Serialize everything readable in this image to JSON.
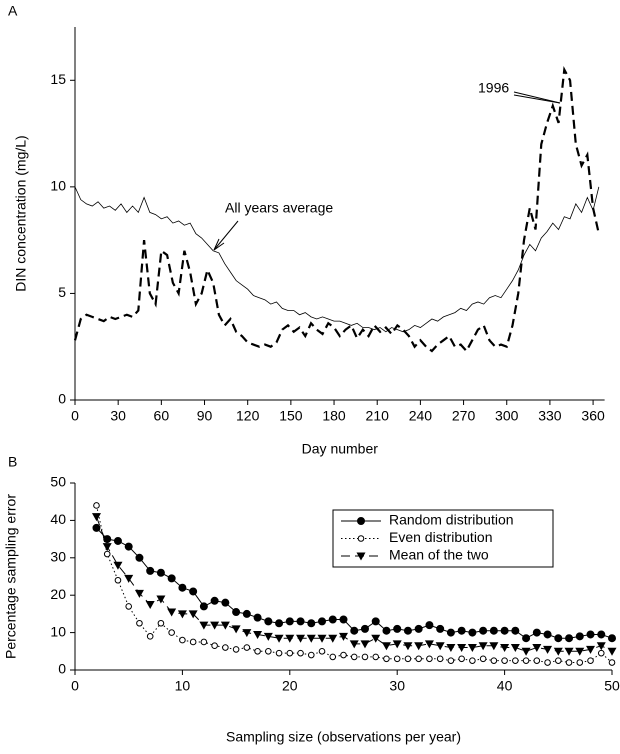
{
  "chart_data": [
    {
      "type": "line",
      "panel_label": "A",
      "xlabel": "Day number",
      "ylabel": "DIN concentration (mg/L)",
      "xlim": [
        0,
        368
      ],
      "xticks": [
        0,
        30,
        60,
        90,
        120,
        150,
        180,
        210,
        240,
        270,
        300,
        330,
        360
      ],
      "ylim": [
        0,
        17.5
      ],
      "yticks": [
        0,
        5,
        10,
        15
      ],
      "x": [
        0,
        4,
        8,
        12,
        16,
        20,
        24,
        28,
        32,
        36,
        40,
        44,
        48,
        52,
        56,
        60,
        64,
        68,
        72,
        76,
        80,
        84,
        88,
        92,
        96,
        100,
        104,
        108,
        112,
        116,
        120,
        124,
        128,
        132,
        136,
        140,
        144,
        148,
        152,
        156,
        160,
        164,
        168,
        172,
        176,
        180,
        184,
        188,
        192,
        196,
        200,
        204,
        208,
        212,
        216,
        220,
        224,
        228,
        232,
        236,
        240,
        244,
        248,
        252,
        256,
        260,
        264,
        268,
        272,
        276,
        280,
        284,
        288,
        292,
        296,
        300,
        304,
        308,
        312,
        316,
        320,
        324,
        328,
        332,
        336,
        340,
        344,
        348,
        352,
        356,
        360,
        364
      ],
      "series": [
        {
          "name": "All years average",
          "color": "#000000",
          "dash": "solid",
          "width": 0.8,
          "values": [
            10.0,
            9.4,
            9.2,
            9.1,
            9.3,
            9.0,
            9.1,
            8.9,
            9.2,
            8.8,
            9.1,
            8.8,
            9.5,
            8.8,
            8.7,
            8.5,
            8.6,
            8.3,
            8.4,
            8.2,
            8.3,
            7.8,
            7.6,
            7.3,
            7.0,
            6.9,
            6.4,
            6.0,
            5.6,
            5.4,
            5.2,
            4.9,
            4.8,
            4.7,
            4.5,
            4.6,
            4.3,
            4.2,
            4.2,
            4.0,
            4.1,
            3.9,
            3.8,
            3.9,
            3.8,
            3.7,
            3.7,
            3.6,
            3.5,
            3.6,
            3.4,
            3.4,
            3.3,
            3.4,
            3.2,
            3.4,
            3.3,
            3.2,
            3.3,
            3.5,
            3.4,
            3.6,
            3.8,
            3.7,
            3.9,
            4.0,
            4.1,
            4.3,
            4.2,
            4.5,
            4.6,
            4.5,
            4.8,
            4.9,
            4.8,
            5.2,
            5.6,
            6.1,
            6.8,
            7.3,
            7.0,
            7.6,
            7.9,
            8.3,
            8.0,
            8.6,
            8.5,
            9.2,
            8.8,
            9.5,
            8.9,
            10.0
          ]
        },
        {
          "name": "1996",
          "color": "#000000",
          "dash": "dashed",
          "width": 2.2,
          "values": [
            2.8,
            3.8,
            4.0,
            3.9,
            3.8,
            3.7,
            3.9,
            3.8,
            3.9,
            4.0,
            3.9,
            4.2,
            7.5,
            5.0,
            4.5,
            7.0,
            6.8,
            5.5,
            5.0,
            7.0,
            6.0,
            4.5,
            5.0,
            6.1,
            5.5,
            4.0,
            3.5,
            3.8,
            3.2,
            3.0,
            2.7,
            2.6,
            2.5,
            2.6,
            2.5,
            2.7,
            3.3,
            3.5,
            3.2,
            3.4,
            3.0,
            3.6,
            3.3,
            3.1,
            3.6,
            3.4,
            3.0,
            3.3,
            3.5,
            2.9,
            3.3,
            3.0,
            3.5,
            3.2,
            3.4,
            3.1,
            3.5,
            3.3,
            3.0,
            2.5,
            2.8,
            2.5,
            2.3,
            2.6,
            2.8,
            3.0,
            2.5,
            2.6,
            2.3,
            2.8,
            3.3,
            3.5,
            2.8,
            2.5,
            2.6,
            2.5,
            3.5,
            5.0,
            7.5,
            9.0,
            8.0,
            12.0,
            13.0,
            13.8,
            13.0,
            15.5,
            15.0,
            12.0,
            11.0,
            11.5,
            9.0,
            7.8
          ]
        }
      ]
    },
    {
      "type": "line",
      "panel_label": "B",
      "xlabel": "Sampling size (observations per year)",
      "ylabel": "Percentage sampling error",
      "xlim": [
        0,
        50
      ],
      "xticks": [
        0,
        10,
        20,
        30,
        40,
        50
      ],
      "ylim": [
        0,
        50
      ],
      "yticks": [
        0,
        10,
        20,
        30,
        40,
        50
      ],
      "legend": "upper right",
      "x": [
        2,
        3,
        4,
        5,
        6,
        7,
        8,
        9,
        10,
        11,
        12,
        13,
        14,
        15,
        16,
        17,
        18,
        19,
        20,
        21,
        22,
        23,
        24,
        25,
        26,
        27,
        28,
        29,
        30,
        31,
        32,
        33,
        34,
        35,
        36,
        37,
        38,
        39,
        40,
        41,
        42,
        43,
        44,
        45,
        46,
        47,
        48,
        49,
        50
      ],
      "series": [
        {
          "name": "Random distribution",
          "color": "#000000",
          "dash": "solid",
          "marker": "filled-circle",
          "values": [
            38,
            35,
            34.5,
            33,
            30,
            26.5,
            26,
            24.5,
            22,
            21,
            17,
            18.5,
            18,
            15.5,
            15,
            14,
            13,
            12.5,
            13,
            13,
            12.5,
            13,
            13.5,
            13.5,
            10.5,
            11,
            13,
            10.5,
            11,
            10.5,
            11,
            12,
            11,
            10,
            10.5,
            10,
            10.5,
            10.5,
            10.5,
            10.5,
            8.5,
            10,
            9.5,
            8.5,
            8.5,
            9,
            9.5,
            9.5,
            8.5
          ]
        },
        {
          "name": "Even distribution",
          "color": "#000000",
          "dash": "dotted",
          "marker": "open-circle",
          "values": [
            44,
            31,
            24,
            17,
            12.5,
            9,
            12.5,
            10,
            8,
            7.5,
            7.5,
            6.5,
            6,
            5.5,
            6,
            5,
            5,
            4.5,
            4.5,
            4.5,
            4,
            5,
            3.5,
            4,
            3.5,
            3.5,
            3.5,
            3,
            3,
            3,
            3,
            3,
            3,
            2.5,
            3,
            2.5,
            3,
            2.5,
            2.5,
            2.5,
            2.5,
            2.5,
            2,
            2.5,
            2,
            2,
            2.5,
            4.5,
            2
          ]
        },
        {
          "name": "Mean of the two",
          "color": "#000000",
          "dash": "dashed",
          "marker": "triangle-down",
          "values": [
            41,
            33,
            28,
            24.5,
            20.5,
            17.5,
            19,
            15.5,
            15,
            15,
            12,
            12,
            12,
            11,
            10,
            9.5,
            9,
            8.5,
            8.5,
            8.5,
            8.5,
            8.5,
            8.5,
            9,
            7,
            7,
            8.5,
            6.5,
            7,
            6.5,
            6.5,
            7,
            6.5,
            6,
            6,
            6,
            6.5,
            6.5,
            6,
            6,
            5,
            6,
            5.5,
            5,
            5,
            5,
            5.5,
            6.5,
            5
          ]
        }
      ]
    }
  ],
  "annotations": [
    "All years average",
    "1996"
  ]
}
